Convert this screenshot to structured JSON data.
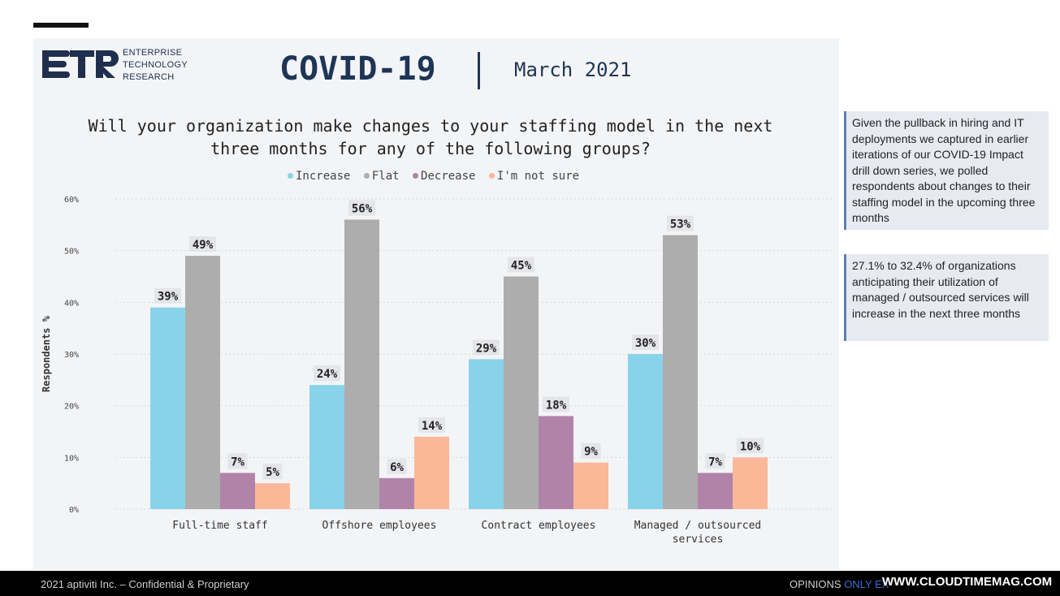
{
  "header": {
    "logo_text_lines": [
      "ENTERPRISE",
      "TECHNOLOGY",
      "RESEARCH"
    ],
    "title": "COVID-19",
    "date": "March 2021"
  },
  "question_lines": [
    "Will your organization make changes to your staffing model in the next",
    "three months for any of the following groups?"
  ],
  "colors": {
    "increase": "#89d3ea",
    "flat": "#adadad",
    "decrease": "#b283a9",
    "not_sure": "#f9b898",
    "header_text": "#1f3556"
  },
  "chart_data": {
    "type": "bar",
    "categories": [
      "Full-time staff",
      "Offshore employees",
      "Contract employees",
      "Managed / outsourced services"
    ],
    "series": [
      {
        "name": "Increase",
        "values": [
          39,
          24,
          29,
          30
        ],
        "labels": [
          "39%",
          "24%",
          "29%",
          "30%"
        ]
      },
      {
        "name": "Flat",
        "values": [
          49,
          56,
          45,
          53
        ],
        "labels": [
          "49%",
          "56%",
          "45%",
          "53%"
        ]
      },
      {
        "name": "Decrease",
        "values": [
          7,
          6,
          18,
          7
        ],
        "labels": [
          "7%",
          "6%",
          "18%",
          "7%"
        ]
      },
      {
        "name": "I'm not sure",
        "values": [
          5,
          14,
          9,
          10
        ],
        "labels": [
          "5%",
          "14%",
          "9%",
          "10%"
        ]
      }
    ],
    "ylabel": "Respondents %",
    "ylim": [
      0,
      60
    ],
    "yticks": [
      0,
      10,
      20,
      30,
      40,
      50,
      60
    ],
    "ytick_labels": [
      "0%",
      "10%",
      "20%",
      "30%",
      "40%",
      "50%",
      "60%"
    ],
    "grid": true,
    "legend_position": "top"
  },
  "notes": [
    "Given the pullback in hiring and IT deployments we captured in earlier iterations of our COVID-19 Impact drill down series, we polled respondents about changes to their staffing model in the upcoming three months",
    "27.1% to 32.4% of organizations anticipating their utilization of managed / outsourced services will increase in the next three months"
  ],
  "footer": {
    "left": "2021 aptiviti Inc. – Confidential & Proprietary",
    "right_prefix": "OPINIONS ",
    "right_highlight": "ONLY EX",
    "url": "WWW.CLOUDTIMEMAG.COM"
  }
}
